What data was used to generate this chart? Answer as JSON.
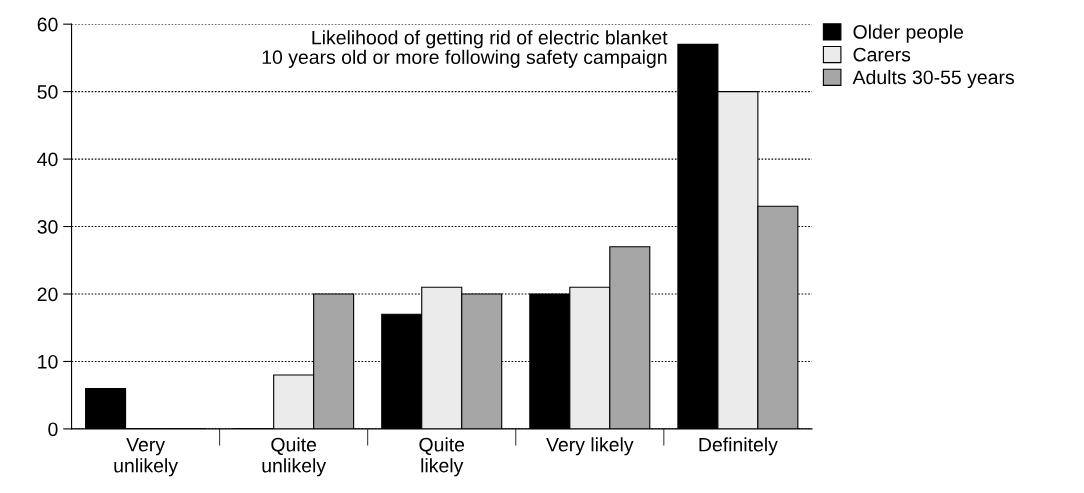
{
  "chart_data": {
    "type": "bar",
    "title": "Likelihood of getting rid of electric blanket\n10 years old or more following safety campaign",
    "categories": [
      "Very\nunlikely",
      "Quite\nunlikely",
      "Quite\nlikely",
      "Very likely",
      "Definitely"
    ],
    "series": [
      {
        "name": "Older people",
        "color": "#000000",
        "values": [
          6,
          0,
          17,
          20,
          57
        ]
      },
      {
        "name": "Carers",
        "color": "#ebebeb",
        "values": [
          0,
          8,
          21,
          21,
          50
        ]
      },
      {
        "name": "Adults 30-55 years",
        "color": "#a6a6a6",
        "values": [
          0,
          20,
          20,
          27,
          33
        ]
      }
    ],
    "ylim": [
      0,
      60
    ],
    "yticks": [
      0,
      10,
      20,
      30,
      40,
      50,
      60
    ],
    "grid": "y",
    "legend": "top right"
  }
}
